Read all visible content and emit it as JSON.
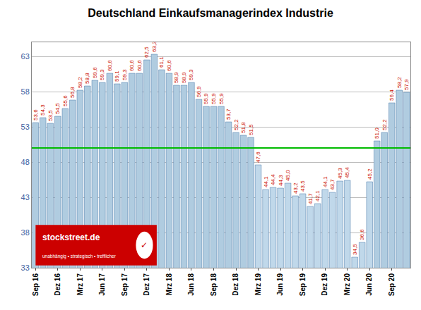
{
  "chart_data": {
    "type": "bar",
    "title": "Deutschland Einkaufsmanagerindex Industrie",
    "categories": [
      "Sep 16",
      null,
      null,
      "Dez 16",
      null,
      null,
      "Mrz 17",
      null,
      null,
      "Jun 17",
      null,
      null,
      "Sep 17",
      null,
      null,
      "Dez 17",
      null,
      null,
      "Mrz 18",
      null,
      null,
      "Jun 18",
      null,
      null,
      "Sep 18",
      null,
      null,
      "Dez 18",
      null,
      null,
      "Mrz 19",
      null,
      null,
      "Jun 19",
      null,
      null,
      "Sep 19",
      null,
      null,
      "Dez 19",
      null,
      null,
      "Mrz 20",
      null,
      null,
      "Jun 20",
      null,
      null,
      "Sep 20",
      null,
      null
    ],
    "values": [
      53.6,
      54.3,
      53.5,
      54.5,
      55.6,
      56.8,
      58.2,
      58.8,
      59.6,
      59.3,
      60.6,
      59.1,
      59.3,
      60.6,
      60.6,
      62.5,
      63.3,
      61.1,
      60.6,
      58.9,
      58.9,
      59.3,
      56.9,
      55.9,
      55.9,
      55.9,
      53.7,
      52.2,
      51.8,
      51.5,
      47.6,
      44.1,
      44.4,
      44.3,
      45.0,
      43.2,
      43.5,
      41.7,
      42.1,
      44.1,
      43.7,
      45.3,
      45.4,
      34.5,
      36.6,
      45.2,
      51.0,
      52.2,
      56.4,
      58.2,
      57.9
    ],
    "value_labels": [
      "53,6",
      "54,3",
      "53,5",
      "54,5",
      "55,6",
      "56,8",
      "58,2",
      "58,8",
      "59,6",
      "59,3",
      "60,6",
      "59,1",
      "59,3",
      "60,6",
      "60,6",
      "62,5",
      "63,3",
      "61,1",
      "60,6",
      "58,9",
      "58,9",
      "59,3",
      "56,9",
      "55,9",
      "55,9",
      "55,9",
      "53,7",
      "52,2",
      "51,8",
      "51,5",
      "47,6",
      "44,1",
      "44,4",
      "44,3",
      "45,0",
      "43,2",
      "43,5",
      "41,7",
      "42,1",
      "44,1",
      "43,7",
      "45,3",
      "45,4",
      "34,5",
      "36,6",
      "45,2",
      "51,0",
      "52,2",
      "56,4",
      "58,2",
      "57,9"
    ],
    "colors": [
      "#b0cce0",
      "#b0cce0",
      "#b0cce0",
      "#b0cce0",
      "#b0cce0",
      "#b0cce0",
      "#b0cce0",
      "#b0cce0",
      "#b0cce0",
      "#b0cce0",
      "#b0cce0",
      "#b0cce0",
      "#b0cce0",
      "#b0cce0",
      "#b0cce0",
      "#b0cce0",
      "#b0cce0",
      "#b0cce0",
      "#b0cce0",
      "#b0cce0",
      "#b0cce0",
      "#b0cce0",
      "#b0cce0",
      "#b0cce0",
      "#b0cce0",
      "#b0cce0",
      "#b0cce0",
      "#b0cce0",
      "#b0cce0",
      "#b0cce0",
      "#c0d8ea",
      "#c0d8ea",
      "#c0d8ea",
      "#c0d8ea",
      "#c0d8ea",
      "#c0d8ea",
      "#c0d8ea",
      "#c0d8ea",
      "#c0d8ea",
      "#c0d8ea",
      "#c0d8ea",
      "#c0d8ea",
      "#c0d8ea",
      "#c0d8ea",
      "#c0d8ea",
      "#c0d8ea",
      "#b0cce0",
      "#b0cce0",
      "#b0cce0",
      "#b0cce0",
      "#b0cce0"
    ],
    "data_labels": true,
    "ylim": [
      33,
      65
    ],
    "yticks": [
      33,
      38,
      43,
      48,
      53,
      58,
      63
    ],
    "grid": true,
    "reference_line": {
      "value": 50.0,
      "color": "#00bb00"
    },
    "annotations": [
      "stockstreet.de",
      "unabhängig • strategisch • trefflicher",
      "✓"
    ]
  }
}
